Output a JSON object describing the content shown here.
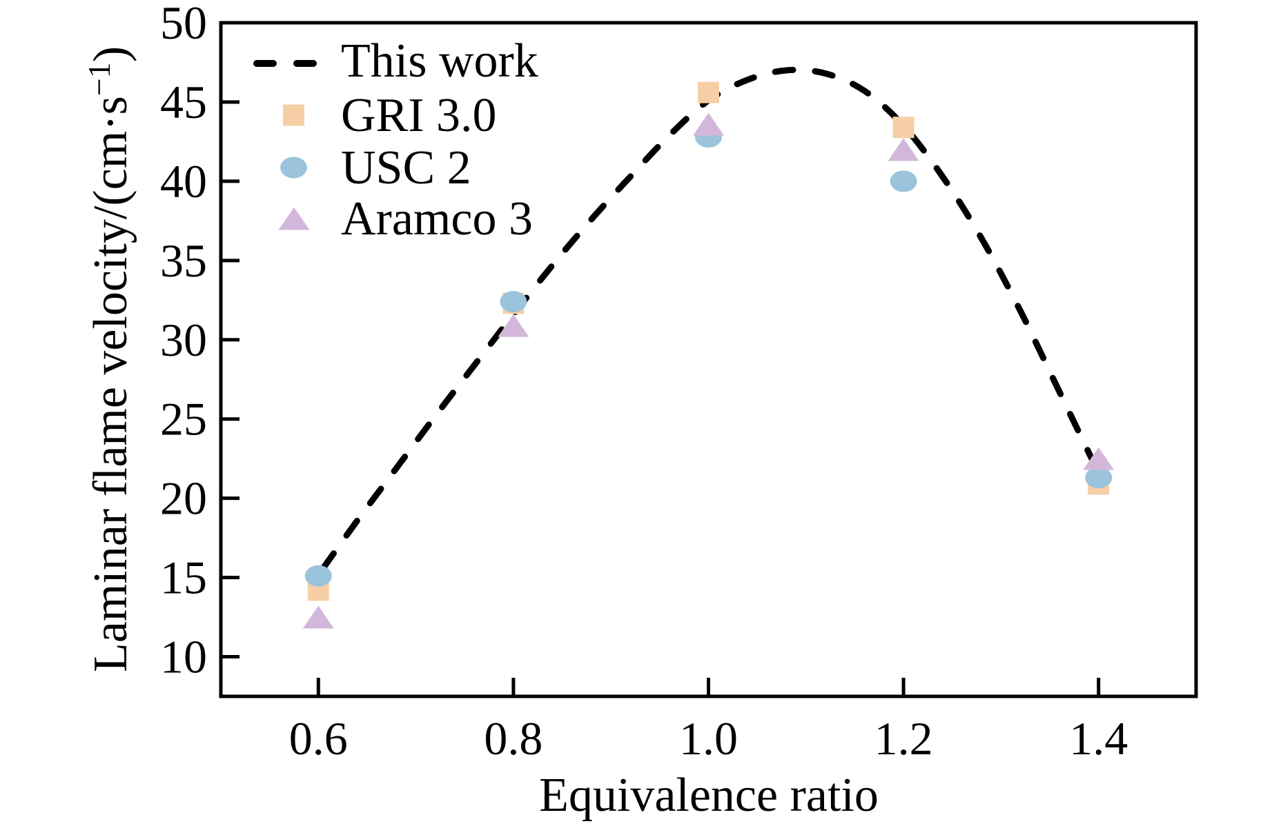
{
  "figure": {
    "background": "#ffffff",
    "frame_color": "#000000",
    "text_color": "#000000"
  },
  "chart_data": {
    "type": "scatter",
    "title": "",
    "xlabel": "Equivalence ratio",
    "ylabel": "Laminar flame velocity/(cm·s⁻¹)",
    "ylabel_parts": {
      "prefix": "Laminar flame velocity/(cm·s",
      "superscript": "−1",
      "suffix": ")"
    },
    "xlim": [
      0.5,
      1.5
    ],
    "ylim": [
      7.5,
      50
    ],
    "grid": false,
    "legend_position": "upper-left",
    "xticks": [
      {
        "label": "0.6",
        "value": 0.6
      },
      {
        "label": "0.8",
        "value": 0.8
      },
      {
        "label": "1.0",
        "value": 1.0
      },
      {
        "label": "1.2",
        "value": 1.2
      },
      {
        "label": "1.4",
        "value": 1.4
      }
    ],
    "yticks": [
      {
        "label": "10",
        "value": 10
      },
      {
        "label": "15",
        "value": 15
      },
      {
        "label": "20",
        "value": 20
      },
      {
        "label": "25",
        "value": 25
      },
      {
        "label": "30",
        "value": 30
      },
      {
        "label": "35",
        "value": 35
      },
      {
        "label": "40",
        "value": 40
      },
      {
        "label": "45",
        "value": 45
      },
      {
        "label": "50",
        "value": 50
      }
    ],
    "series": [
      {
        "name": "This work",
        "kind": "line",
        "line_style": "dashed",
        "color": "#000000",
        "points": [
          [
            0.605,
            15.6
          ],
          [
            0.64,
            18.6
          ],
          [
            0.68,
            21.9
          ],
          [
            0.72,
            25.2
          ],
          [
            0.76,
            28.4
          ],
          [
            0.8,
            31.6
          ],
          [
            0.84,
            34.7
          ],
          [
            0.88,
            37.6
          ],
          [
            0.92,
            40.3
          ],
          [
            0.96,
            42.9
          ],
          [
            1.0,
            45.1
          ],
          [
            1.04,
            46.4
          ],
          [
            1.08,
            47.0
          ],
          [
            1.12,
            46.8
          ],
          [
            1.16,
            45.7
          ],
          [
            1.2,
            43.5
          ],
          [
            1.24,
            40.3
          ],
          [
            1.28,
            36.4
          ],
          [
            1.32,
            31.8
          ],
          [
            1.36,
            26.7
          ],
          [
            1.4,
            21.6
          ]
        ]
      },
      {
        "name": "GRI 3.0",
        "kind": "scatter",
        "marker": "square",
        "color": "#f6cfa6",
        "x": [
          0.6,
          0.8,
          1.0,
          1.2,
          1.4
        ],
        "y": [
          14.2,
          32.3,
          45.6,
          43.4,
          20.9
        ]
      },
      {
        "name": "USC 2",
        "kind": "scatter",
        "marker": "circle",
        "color": "#9bc3dc",
        "x": [
          0.6,
          0.8,
          1.0,
          1.2,
          1.4
        ],
        "y": [
          15.1,
          32.4,
          42.8,
          40.0,
          21.3
        ]
      },
      {
        "name": "Aramco 3",
        "kind": "scatter",
        "marker": "triangle",
        "color": "#d3b7da",
        "x": [
          0.6,
          0.8,
          1.0,
          1.2,
          1.4
        ],
        "y": [
          12.5,
          30.9,
          43.6,
          42.0,
          22.5
        ]
      }
    ]
  }
}
